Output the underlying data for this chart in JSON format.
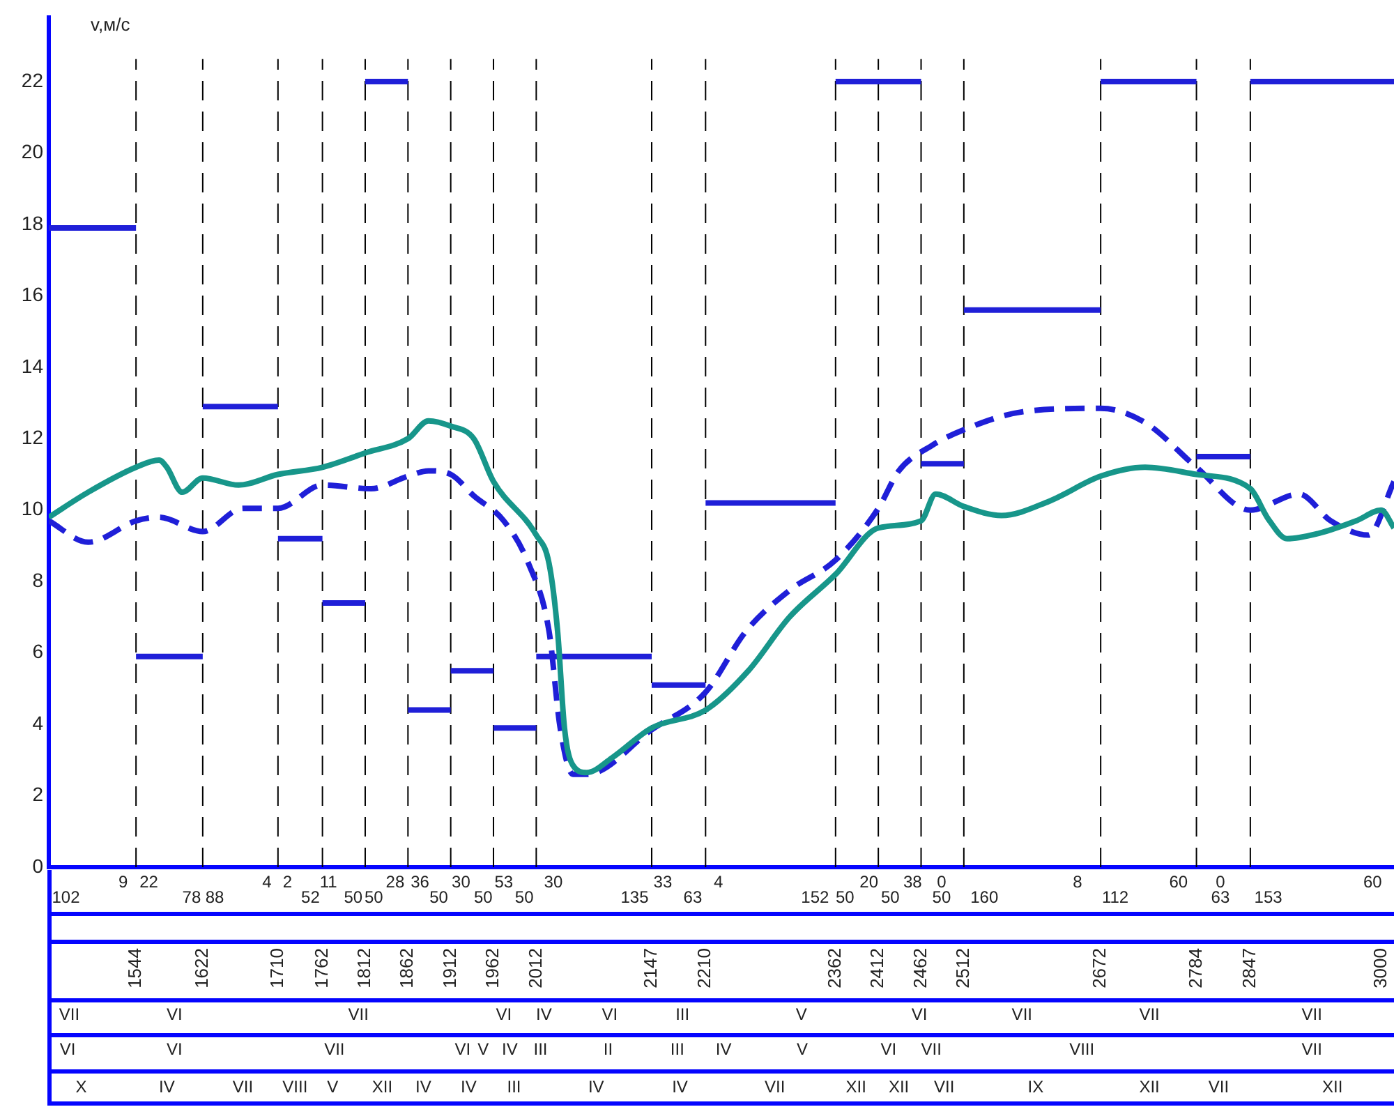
{
  "chart_data": {
    "type": "line",
    "ylabel": "v,м/с",
    "xlim": [
      1442,
      3015
    ],
    "ylim": [
      0,
      23.8
    ],
    "xticks": [
      1544,
      1622,
      1710,
      1762,
      1812,
      1862,
      1912,
      1962,
      2012,
      2147,
      2210,
      2362,
      2412,
      2462,
      2512,
      2672,
      2784,
      2847,
      3000
    ],
    "yticks": [
      0,
      2,
      4,
      6,
      8,
      10,
      12,
      14,
      16,
      18,
      20,
      22
    ],
    "grid": false,
    "legend": false,
    "series": [
      {
        "color": "#17968a",
        "line_style": "solid",
        "x": [
          1442,
          1488,
          1544,
          1571,
          1580,
          1598,
          1622,
          1664,
          1710,
          1762,
          1812,
          1862,
          1886,
          1912,
          1939,
          1962,
          2012,
          2027,
          2037,
          2045,
          2055,
          2071,
          2101,
          2147,
          2210,
          2260,
          2308,
          2362,
          2412,
          2462,
          2479,
          2512,
          2556,
          2612,
          2672,
          2724,
          2784,
          2847,
          2868,
          2890,
          2927,
          2971,
          3000,
          3015
        ],
        "values": [
          9.8,
          10.5,
          11.2,
          11.4,
          11.2,
          10.5,
          10.9,
          10.7,
          11.0,
          11.2,
          11.6,
          12.0,
          12.5,
          12.35,
          12.0,
          10.8,
          9.3,
          8.5,
          6.6,
          3.9,
          2.85,
          2.65,
          3.07,
          3.9,
          4.4,
          5.5,
          7.0,
          8.2,
          9.5,
          9.7,
          10.45,
          10.1,
          9.85,
          10.25,
          10.95,
          11.2,
          11.0,
          10.6,
          9.75,
          9.2,
          9.35,
          9.7,
          10.0,
          9.5
        ]
      },
      {
        "color": "#1f1fd8",
        "line_style": "dashed",
        "x": [
          1442,
          1488,
          1544,
          1571,
          1622,
          1669,
          1710,
          1762,
          1819,
          1862,
          1886,
          1912,
          1939,
          1974,
          2003,
          2027,
          2040,
          2055,
          2071,
          2147,
          2210,
          2257,
          2308,
          2362,
          2412,
          2436,
          2474,
          2512,
          2580,
          2672,
          2724,
          2784,
          2847,
          2904,
          2941,
          2985,
          3015
        ],
        "values": [
          9.7,
          9.1,
          9.7,
          9.8,
          9.4,
          10.05,
          10.05,
          10.7,
          10.6,
          10.95,
          11.1,
          11.0,
          10.4,
          9.7,
          8.5,
          6.6,
          3.9,
          2.6,
          2.6,
          3.85,
          4.9,
          6.6,
          7.75,
          8.6,
          10.05,
          11.1,
          11.8,
          12.25,
          12.75,
          12.85,
          12.45,
          11.2,
          10.0,
          10.45,
          9.7,
          9.3,
          10.8
        ]
      },
      {
        "color": "#1f1fd8",
        "line_style": "solid",
        "x": [
          1442,
          1544
        ],
        "values": [
          17.9,
          17.9
        ]
      },
      {
        "color": "#1f1fd8",
        "line_style": "solid",
        "x": [
          1544,
          1622
        ],
        "values": [
          5.9,
          5.9
        ]
      },
      {
        "color": "#1f1fd8",
        "line_style": "solid",
        "x": [
          1622,
          1710
        ],
        "values": [
          12.9,
          12.9
        ]
      },
      {
        "color": "#1f1fd8",
        "line_style": "solid",
        "x": [
          1710,
          1762
        ],
        "values": [
          9.2,
          9.2
        ]
      },
      {
        "color": "#1f1fd8",
        "line_style": "solid",
        "x": [
          1762,
          1812
        ],
        "values": [
          7.4,
          7.4
        ]
      },
      {
        "color": "#1f1fd8",
        "line_style": "solid",
        "x": [
          1812,
          1862
        ],
        "values": [
          22,
          22
        ]
      },
      {
        "color": "#1f1fd8",
        "line_style": "solid",
        "x": [
          1862,
          1912
        ],
        "values": [
          4.4,
          4.4
        ]
      },
      {
        "color": "#1f1fd8",
        "line_style": "solid",
        "x": [
          1912,
          1962
        ],
        "values": [
          5.5,
          5.5
        ]
      },
      {
        "color": "#1f1fd8",
        "line_style": "solid",
        "x": [
          1962,
          2012
        ],
        "values": [
          3.9,
          3.9
        ]
      },
      {
        "color": "#1f1fd8",
        "line_style": "solid",
        "x": [
          2012,
          2147
        ],
        "values": [
          5.9,
          5.9
        ]
      },
      {
        "color": "#1f1fd8",
        "line_style": "solid",
        "x": [
          2147,
          2210
        ],
        "values": [
          5.1,
          5.1
        ]
      },
      {
        "color": "#1f1fd8",
        "line_style": "solid",
        "x": [
          2210,
          2362
        ],
        "values": [
          10.2,
          10.2
        ]
      },
      {
        "color": "#1f1fd8",
        "line_style": "solid",
        "x": [
          2362,
          2462
        ],
        "values": [
          22,
          22
        ]
      },
      {
        "color": "#1f1fd8",
        "line_style": "solid",
        "x": [
          2462,
          2512
        ],
        "values": [
          11.3,
          11.3
        ]
      },
      {
        "color": "#1f1fd8",
        "line_style": "solid",
        "x": [
          2512,
          2672
        ],
        "values": [
          15.6,
          15.6
        ]
      },
      {
        "color": "#1f1fd8",
        "line_style": "solid",
        "x": [
          2672,
          2784
        ],
        "values": [
          22,
          22
        ]
      },
      {
        "color": "#1f1fd8",
        "line_style": "solid",
        "x": [
          2784,
          2847
        ],
        "values": [
          11.5,
          11.5
        ]
      },
      {
        "color": "#1f1fd8",
        "line_style": "solid",
        "x": [
          2847,
          3015
        ],
        "values": [
          22,
          22
        ]
      }
    ],
    "ref_lines": [
      {
        "axis": "x",
        "value": 1544,
        "color": "#000000",
        "line_style": "dashed"
      },
      {
        "axis": "x",
        "value": 1622,
        "color": "#000000",
        "line_style": "dashed"
      },
      {
        "axis": "x",
        "value": 1710,
        "color": "#000000",
        "line_style": "dashed"
      },
      {
        "axis": "x",
        "value": 1762,
        "color": "#000000",
        "line_style": "dashed"
      },
      {
        "axis": "x",
        "value": 1812,
        "color": "#000000",
        "line_style": "dashed"
      },
      {
        "axis": "x",
        "value": 1862,
        "color": "#000000",
        "line_style": "dashed"
      },
      {
        "axis": "x",
        "value": 1912,
        "color": "#000000",
        "line_style": "dashed"
      },
      {
        "axis": "x",
        "value": 1962,
        "color": "#000000",
        "line_style": "dashed"
      },
      {
        "axis": "x",
        "value": 2012,
        "color": "#000000",
        "line_style": "dashed"
      },
      {
        "axis": "x",
        "value": 2147,
        "color": "#000000",
        "line_style": "dashed"
      },
      {
        "axis": "x",
        "value": 2210,
        "color": "#000000",
        "line_style": "dashed"
      },
      {
        "axis": "x",
        "value": 2362,
        "color": "#000000",
        "line_style": "dashed"
      },
      {
        "axis": "x",
        "value": 2412,
        "color": "#000000",
        "line_style": "dashed"
      },
      {
        "axis": "x",
        "value": 2462,
        "color": "#000000",
        "line_style": "dashed"
      },
      {
        "axis": "x",
        "value": 2512,
        "color": "#000000",
        "line_style": "dashed"
      },
      {
        "axis": "x",
        "value": 2672,
        "color": "#000000",
        "line_style": "dashed"
      },
      {
        "axis": "x",
        "value": 2784,
        "color": "#000000",
        "line_style": "dashed"
      },
      {
        "axis": "x",
        "value": 2847,
        "color": "#000000",
        "line_style": "dashed"
      }
    ],
    "annotations": [
      "102",
      "9",
      "22",
      "78",
      "88",
      "4",
      "2",
      "52",
      "11",
      "50",
      "50",
      "28",
      "36",
      "50",
      "30",
      "50",
      "53",
      "50",
      "30",
      "135",
      "33",
      "63",
      "4",
      "152",
      "50",
      "20",
      "50",
      "38",
      "0",
      "50",
      "160",
      "8",
      "112",
      "60",
      "0",
      "63",
      "153",
      "60",
      "VII",
      "VI",
      "VII",
      "VI",
      "IV",
      "VI",
      "III",
      "V",
      "VI",
      "VII",
      "VII",
      "VII",
      "VI",
      "VI",
      "VII",
      "VI",
      "V",
      "IV",
      "III",
      "II",
      "III",
      "IV",
      "V",
      "VI",
      "VII",
      "VIII",
      "VII",
      "X",
      "IV",
      "VII",
      "VIII",
      "V",
      "XII",
      "IV",
      "IV",
      "III",
      "IV",
      "IV",
      "VII",
      "XII",
      "XII",
      "VII",
      "IX",
      "XII",
      "VII",
      "XII"
    ]
  }
}
